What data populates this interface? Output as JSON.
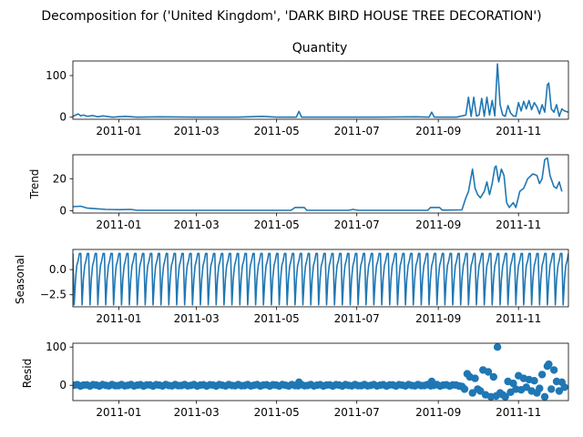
{
  "suptitle": "Decomposition for ('United Kingdom', 'DARK BIRD HOUSE TREE DECORATION')",
  "colors": {
    "series": "#1f77b4"
  },
  "chart_data": [
    {
      "type": "line",
      "title": "Quantity",
      "ylabel": "",
      "ylim": [
        -5,
        135
      ],
      "yticks": [
        0,
        100
      ],
      "xlim": [
        "2011-11-27",
        "2011-12-09"
      ],
      "xticks": [
        "2011-01",
        "2011-03",
        "2011-05",
        "2011-07",
        "2011-09",
        "2011-11"
      ],
      "series": [
        {
          "points": [
            [
              "2010-11-27",
              2
            ],
            [
              "2010-12-01",
              8
            ],
            [
              "2010-12-03",
              3
            ],
            [
              "2010-12-05",
              5
            ],
            [
              "2010-12-08",
              2
            ],
            [
              "2010-12-12",
              4
            ],
            [
              "2010-12-16",
              1
            ],
            [
              "2010-12-20",
              3
            ],
            [
              "2010-12-27",
              0
            ],
            [
              "2011-01-06",
              2
            ],
            [
              "2011-01-15",
              0
            ],
            [
              "2011-02-01",
              1
            ],
            [
              "2011-03-01",
              0
            ],
            [
              "2011-04-01",
              0
            ],
            [
              "2011-04-20",
              2
            ],
            [
              "2011-05-01",
              0
            ],
            [
              "2011-05-16",
              0
            ],
            [
              "2011-05-18",
              14
            ],
            [
              "2011-05-20",
              0
            ],
            [
              "2011-06-15",
              0
            ],
            [
              "2011-07-15",
              0
            ],
            [
              "2011-08-15",
              1
            ],
            [
              "2011-08-25",
              0
            ],
            [
              "2011-08-27",
              12
            ],
            [
              "2011-08-29",
              0
            ],
            [
              "2011-09-15",
              0
            ],
            [
              "2011-09-22",
              5
            ],
            [
              "2011-09-24",
              48
            ],
            [
              "2011-09-26",
              2
            ],
            [
              "2011-09-28",
              48
            ],
            [
              "2011-09-30",
              3
            ],
            [
              "2011-10-02",
              5
            ],
            [
              "2011-10-04",
              45
            ],
            [
              "2011-10-06",
              2
            ],
            [
              "2011-10-08",
              48
            ],
            [
              "2011-10-10",
              5
            ],
            [
              "2011-10-12",
              40
            ],
            [
              "2011-10-14",
              3
            ],
            [
              "2011-10-16",
              128
            ],
            [
              "2011-10-18",
              30
            ],
            [
              "2011-10-20",
              5
            ],
            [
              "2011-10-22",
              2
            ],
            [
              "2011-10-24",
              28
            ],
            [
              "2011-10-26",
              10
            ],
            [
              "2011-10-28",
              3
            ],
            [
              "2011-10-30",
              2
            ],
            [
              "2011-11-01",
              35
            ],
            [
              "2011-11-03",
              15
            ],
            [
              "2011-11-05",
              38
            ],
            [
              "2011-11-07",
              20
            ],
            [
              "2011-11-09",
              40
            ],
            [
              "2011-11-11",
              18
            ],
            [
              "2011-11-13",
              35
            ],
            [
              "2011-11-15",
              25
            ],
            [
              "2011-11-17",
              8
            ],
            [
              "2011-11-19",
              30
            ],
            [
              "2011-11-21",
              12
            ],
            [
              "2011-11-23",
              78
            ],
            [
              "2011-11-24",
              82
            ],
            [
              "2011-11-26",
              20
            ],
            [
              "2011-11-28",
              12
            ],
            [
              "2011-11-30",
              30
            ],
            [
              "2011-12-02",
              2
            ],
            [
              "2011-12-04",
              20
            ],
            [
              "2011-12-06",
              15
            ],
            [
              "2011-12-09",
              12
            ]
          ]
        }
      ]
    },
    {
      "type": "line",
      "title": "",
      "ylabel": "Trend",
      "ylim": [
        -1.5,
        35
      ],
      "yticks": [
        0,
        20
      ],
      "xlim": [
        "2010-11-27",
        "2011-12-09"
      ],
      "xticks": [
        "2011-01",
        "2011-03",
        "2011-05",
        "2011-07",
        "2011-09",
        "2011-11"
      ],
      "series": [
        {
          "points": [
            [
              "2010-11-27",
              2.5
            ],
            [
              "2010-12-03",
              2.8
            ],
            [
              "2010-12-08",
              1.6
            ],
            [
              "2010-12-15",
              1.2
            ],
            [
              "2010-12-22",
              0.8
            ],
            [
              "2011-01-01",
              0.6
            ],
            [
              "2011-01-10",
              0.8
            ],
            [
              "2011-01-15",
              0.2
            ],
            [
              "2011-05-12",
              0.2
            ],
            [
              "2011-05-15",
              2
            ],
            [
              "2011-05-22",
              2
            ],
            [
              "2011-05-24",
              0.2
            ],
            [
              "2011-06-25",
              0.2
            ],
            [
              "2011-06-28",
              0.8
            ],
            [
              "2011-07-02",
              0.2
            ],
            [
              "2011-08-24",
              0.2
            ],
            [
              "2011-08-26",
              2
            ],
            [
              "2011-09-02",
              2
            ],
            [
              "2011-09-04",
              0.3
            ],
            [
              "2011-09-19",
              0.5
            ],
            [
              "2011-09-22",
              8
            ],
            [
              "2011-09-24",
              12
            ],
            [
              "2011-09-27",
              26
            ],
            [
              "2011-09-29",
              14
            ],
            [
              "2011-10-01",
              10
            ],
            [
              "2011-10-03",
              8
            ],
            [
              "2011-10-06",
              12
            ],
            [
              "2011-10-08",
              18
            ],
            [
              "2011-10-10",
              10
            ],
            [
              "2011-10-12",
              17
            ],
            [
              "2011-10-14",
              27
            ],
            [
              "2011-10-15",
              28
            ],
            [
              "2011-10-17",
              18
            ],
            [
              "2011-10-19",
              26
            ],
            [
              "2011-10-21",
              22
            ],
            [
              "2011-10-23",
              5
            ],
            [
              "2011-10-25",
              2
            ],
            [
              "2011-10-28",
              5
            ],
            [
              "2011-10-30",
              2
            ],
            [
              "2011-11-02",
              12
            ],
            [
              "2011-11-05",
              14
            ],
            [
              "2011-11-08",
              20
            ],
            [
              "2011-11-12",
              23
            ],
            [
              "2011-11-15",
              22
            ],
            [
              "2011-11-17",
              17
            ],
            [
              "2011-11-19",
              20
            ],
            [
              "2011-11-21",
              32
            ],
            [
              "2011-11-23",
              33
            ],
            [
              "2011-11-25",
              22
            ],
            [
              "2011-11-28",
              15
            ],
            [
              "2011-11-30",
              14
            ],
            [
              "2011-12-02",
              18
            ],
            [
              "2011-12-04",
              12
            ]
          ]
        }
      ]
    },
    {
      "type": "line",
      "title": "",
      "ylabel": "Seasonal",
      "ylim": [
        -3.7,
        2.0
      ],
      "yticks": [
        0.0,
        -2.5
      ],
      "ytick_labels": [
        "0.0",
        "−2.5"
      ],
      "xlim": [
        "2010-11-27",
        "2011-12-09"
      ],
      "xticks": [
        "2011-01",
        "2011-03",
        "2011-05",
        "2011-07",
        "2011-09",
        "2011-11"
      ],
      "period_days": 6,
      "pattern": [
        1.6,
        -3.5,
        -1.0,
        0.4,
        0.9,
        1.6
      ]
    },
    {
      "type": "scatter",
      "title": "",
      "ylabel": "Resid",
      "ylim": [
        -40,
        110
      ],
      "yticks": [
        0,
        100
      ],
      "xlim": [
        "2010-11-27",
        "2011-12-09"
      ],
      "xticks": [
        "2011-01",
        "2011-03",
        "2011-05",
        "2011-07",
        "2011-09",
        "2011-11"
      ],
      "series": [
        {
          "points": [
            [
              "2011-05-18",
              8
            ],
            [
              "2011-08-27",
              10
            ],
            [
              "2011-09-19",
              -3
            ],
            [
              "2011-09-21",
              -10
            ],
            [
              "2011-09-23",
              30
            ],
            [
              "2011-09-25",
              22
            ],
            [
              "2011-09-27",
              -20
            ],
            [
              "2011-09-29",
              18
            ],
            [
              "2011-10-01",
              -10
            ],
            [
              "2011-10-03",
              -15
            ],
            [
              "2011-10-05",
              40
            ],
            [
              "2011-10-07",
              -25
            ],
            [
              "2011-10-09",
              35
            ],
            [
              "2011-10-11",
              -30
            ],
            [
              "2011-10-13",
              22
            ],
            [
              "2011-10-15",
              -28
            ],
            [
              "2011-10-16",
              100
            ],
            [
              "2011-10-18",
              -20
            ],
            [
              "2011-10-20",
              -25
            ],
            [
              "2011-10-22",
              -30
            ],
            [
              "2011-10-24",
              10
            ],
            [
              "2011-10-26",
              -18
            ],
            [
              "2011-10-28",
              5
            ],
            [
              "2011-10-30",
              -10
            ],
            [
              "2011-11-01",
              25
            ],
            [
              "2011-11-03",
              -12
            ],
            [
              "2011-11-05",
              18
            ],
            [
              "2011-11-07",
              -5
            ],
            [
              "2011-11-09",
              15
            ],
            [
              "2011-11-11",
              -15
            ],
            [
              "2011-11-13",
              12
            ],
            [
              "2011-11-15",
              -20
            ],
            [
              "2011-11-17",
              -8
            ],
            [
              "2011-11-19",
              28
            ],
            [
              "2011-11-21",
              -30
            ],
            [
              "2011-11-23",
              50
            ],
            [
              "2011-11-24",
              55
            ],
            [
              "2011-11-26",
              -10
            ],
            [
              "2011-11-28",
              40
            ],
            [
              "2011-11-30",
              10
            ],
            [
              "2011-12-02",
              -15
            ],
            [
              "2011-12-04",
              8
            ],
            [
              "2011-12-06",
              -5
            ]
          ]
        }
      ]
    }
  ]
}
